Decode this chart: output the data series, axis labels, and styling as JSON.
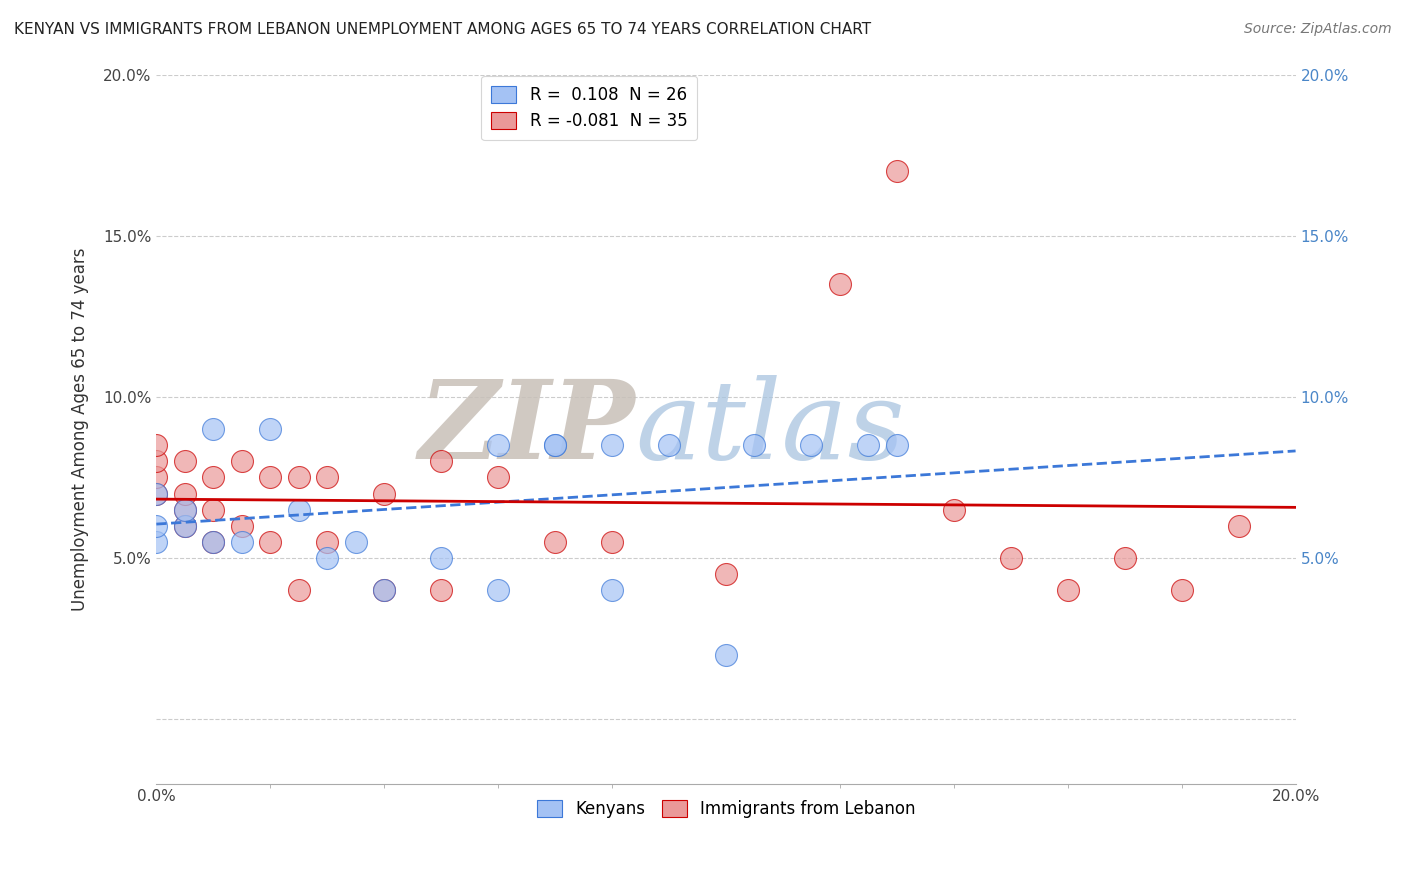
{
  "title": "KENYAN VS IMMIGRANTS FROM LEBANON UNEMPLOYMENT AMONG AGES 65 TO 74 YEARS CORRELATION CHART",
  "source": "Source: ZipAtlas.com",
  "ylabel": "Unemployment Among Ages 65 to 74 years",
  "xlim": [
    0.0,
    0.2
  ],
  "ylim": [
    -0.02,
    0.2
  ],
  "legend_blue_r": "R =  0.108",
  "legend_blue_n": "N = 26",
  "legend_pink_r": "R = -0.081",
  "legend_pink_n": "N = 35",
  "blue_color": "#a4c2f4",
  "pink_color": "#ea9999",
  "blue_line_color": "#3c78d8",
  "pink_line_color": "#cc0000",
  "kenyans_x": [
    0.0,
    0.0,
    0.0,
    0.005,
    0.005,
    0.01,
    0.01,
    0.015,
    0.02,
    0.025,
    0.03,
    0.035,
    0.04,
    0.05,
    0.06,
    0.06,
    0.07,
    0.07,
    0.08,
    0.08,
    0.09,
    0.1,
    0.105,
    0.115,
    0.125,
    0.13
  ],
  "kenyans_y": [
    0.055,
    0.06,
    0.07,
    0.06,
    0.065,
    0.055,
    0.09,
    0.055,
    0.09,
    0.065,
    0.05,
    0.055,
    0.04,
    0.05,
    0.04,
    0.085,
    0.085,
    0.085,
    0.04,
    0.085,
    0.085,
    0.02,
    0.085,
    0.085,
    0.085,
    0.085
  ],
  "lebanon_x": [
    0.0,
    0.0,
    0.0,
    0.0,
    0.005,
    0.005,
    0.005,
    0.005,
    0.01,
    0.01,
    0.01,
    0.015,
    0.015,
    0.02,
    0.02,
    0.025,
    0.025,
    0.03,
    0.03,
    0.04,
    0.04,
    0.05,
    0.05,
    0.06,
    0.07,
    0.08,
    0.1,
    0.12,
    0.13,
    0.14,
    0.15,
    0.16,
    0.17,
    0.18,
    0.19
  ],
  "lebanon_y": [
    0.07,
    0.075,
    0.08,
    0.085,
    0.06,
    0.065,
    0.07,
    0.08,
    0.055,
    0.065,
    0.075,
    0.06,
    0.08,
    0.055,
    0.075,
    0.04,
    0.075,
    0.055,
    0.075,
    0.04,
    0.07,
    0.04,
    0.08,
    0.075,
    0.055,
    0.055,
    0.045,
    0.135,
    0.17,
    0.065,
    0.05,
    0.04,
    0.05,
    0.04,
    0.06
  ]
}
